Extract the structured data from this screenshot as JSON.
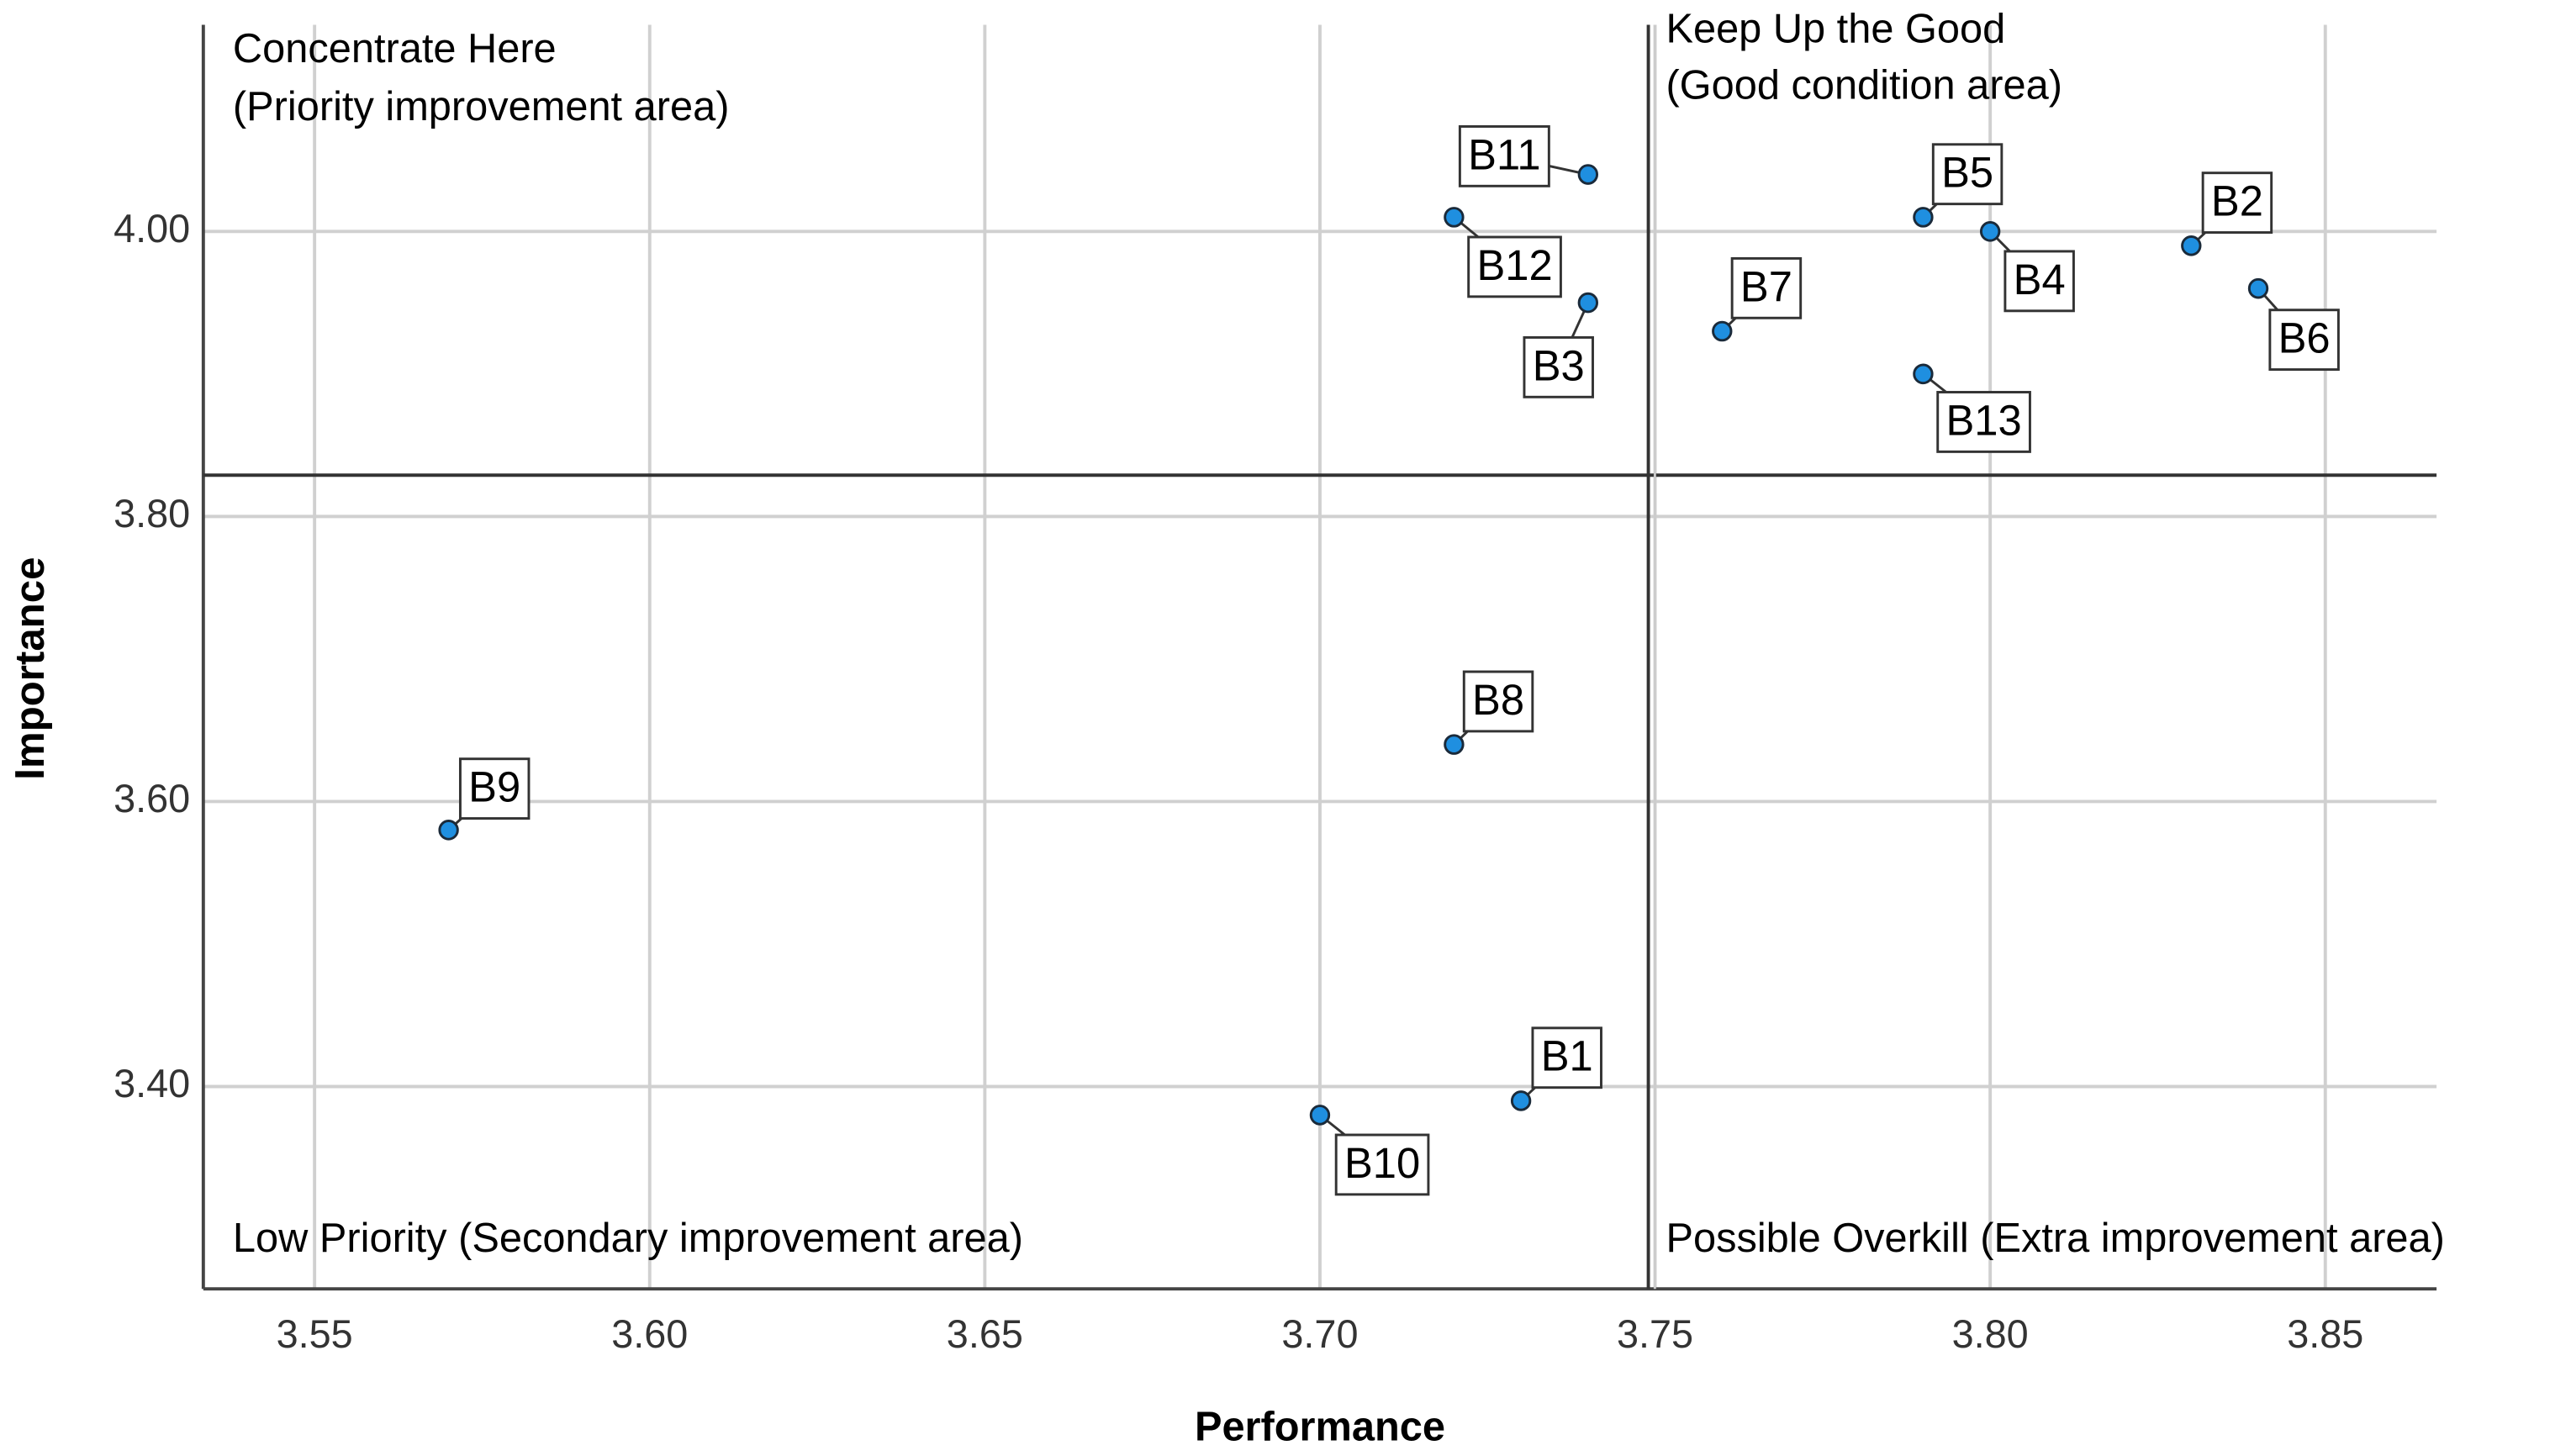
{
  "chart_data": {
    "type": "scatter",
    "x_label": "Performance",
    "y_label": "Importance",
    "x": [
      3.73,
      3.83,
      3.74,
      3.8,
      3.79,
      3.84,
      3.76,
      3.72,
      3.57,
      3.7,
      3.74,
      3.72,
      3.79
    ],
    "values": [
      3.39,
      3.99,
      3.95,
      4.0,
      4.01,
      3.96,
      3.93,
      3.64,
      3.58,
      3.38,
      4.04,
      4.01,
      3.9
    ],
    "point_labels": [
      "B1",
      "B2",
      "B3",
      "B4",
      "B5",
      "B6",
      "B7",
      "B8",
      "B9",
      "B10",
      "B11",
      "B12",
      "B13"
    ],
    "color": "#1f8fe0",
    "xlim": [
      3.5334,
      3.8666
    ],
    "xticks": [
      3.55,
      {
        "value": 3.6,
        "label": "3.60"
      },
      3.65,
      {
        "value": 3.7,
        "label": "3.70"
      },
      3.75,
      {
        "value": 3.8,
        "label": "3.80"
      },
      3.85
    ],
    "ylim": [
      3.258,
      4.145
    ],
    "yticks": [
      {
        "value": 3.4,
        "label": "3.40"
      },
      {
        "value": 3.6,
        "label": "3.60"
      },
      {
        "value": 3.8,
        "label": "3.80"
      },
      {
        "value": 4.0,
        "label": "4.00"
      }
    ],
    "grid": true,
    "ref_x": 3.749,
    "ref_y": 3.829,
    "annotations": [
      "Concentrate Here",
      " (Priority improvement area)",
      "Keep Up the Good",
      "(Good condition area)",
      "Low Priority (Secondary improvement area)",
      "Possible Overkill (Extra improvement area)"
    ]
  }
}
